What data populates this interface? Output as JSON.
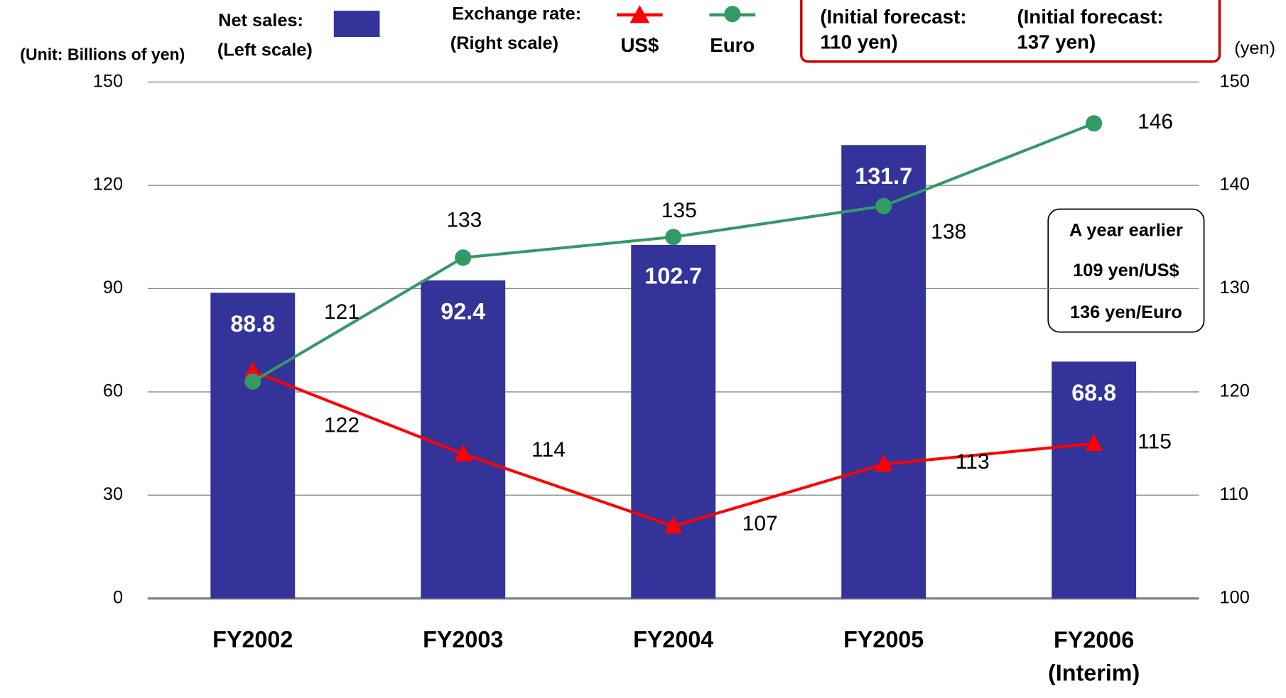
{
  "chart_data": {
    "type": "bar-line",
    "unit_label": "(Unit: Billions of yen)",
    "y2_unit_label": "(yen)",
    "legend": {
      "net_sales": "Net sales:",
      "left_scale": "(Left scale)",
      "exchange_rate": "Exchange rate:",
      "right_scale": "(Right scale)"
    },
    "forecast_notes": [
      "(Initial forecast:",
      "110 yen)",
      "(Initial forecast:",
      "137 yen)"
    ],
    "annotation": [
      "A year earlier",
      "109 yen/US$",
      "136 yen/Euro"
    ],
    "categories": [
      "FY2002",
      "FY2003",
      "FY2004",
      "FY2005",
      "FY2006\n(Interim)"
    ],
    "ylim": [
      0,
      150
    ],
    "yticks": [
      0,
      30,
      60,
      90,
      120,
      150
    ],
    "y2lim": [
      100,
      150
    ],
    "y2ticks": [
      100,
      110,
      120,
      130,
      140,
      150
    ],
    "grid": true,
    "series": [
      {
        "name": "Net sales",
        "type": "bar",
        "color": "#333399",
        "values": [
          88.8,
          92.4,
          102.7,
          131.7,
          68.8
        ]
      },
      {
        "name": "US$",
        "type": "line",
        "marker": "triangle",
        "axis": "y2",
        "color": "#ff0000",
        "values": [
          122,
          114,
          107,
          113,
          115
        ]
      },
      {
        "name": "Euro",
        "type": "line",
        "marker": "circle",
        "axis": "y2",
        "color": "#339966",
        "values": [
          121,
          133,
          135,
          138,
          146
        ]
      }
    ]
  }
}
